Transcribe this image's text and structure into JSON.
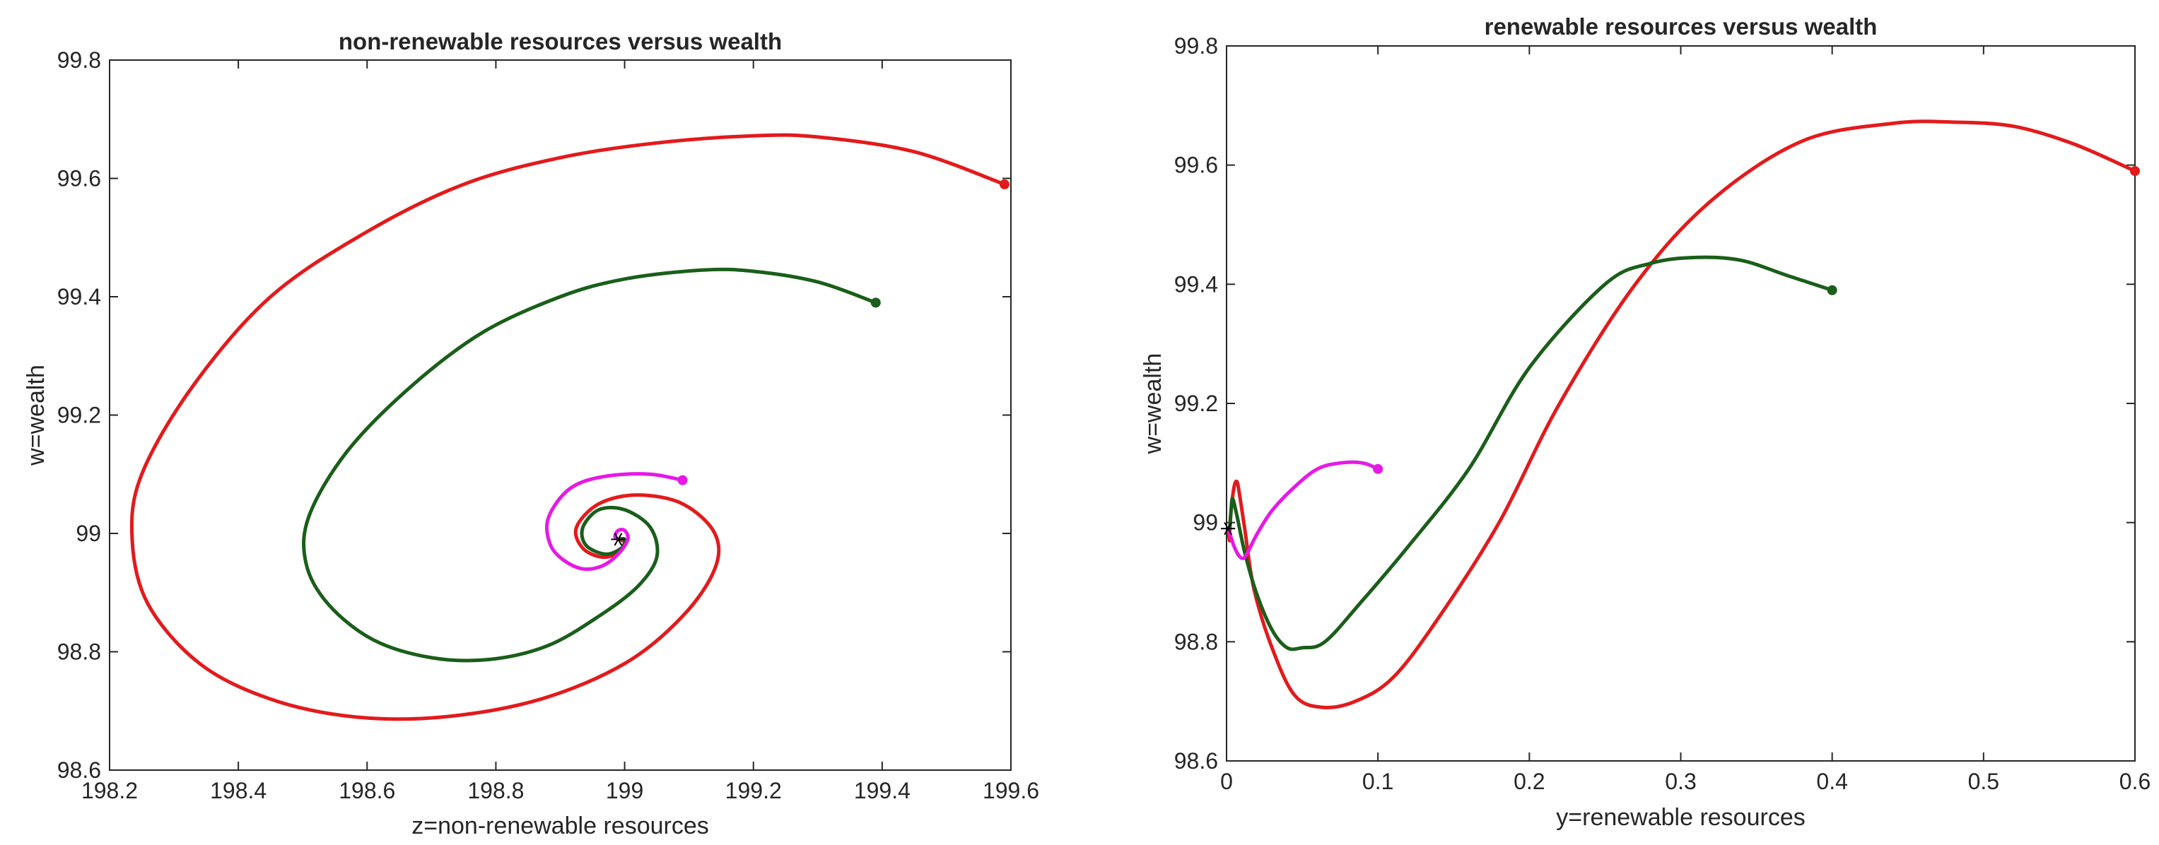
{
  "colors": {
    "red": "#e31a1c",
    "green": "#1a5e1a",
    "magenta": "#e619e6",
    "axis": "#262626",
    "marker": "#000000"
  },
  "chart_data": [
    {
      "type": "line",
      "title": "non-renewable resources versus wealth",
      "xlabel": "z=non-renewable resources",
      "ylabel": "w=wealth",
      "xlim": [
        198.2,
        199.6
      ],
      "ylim": [
        98.6,
        99.8
      ],
      "xticks": [
        "198.2",
        "198.4",
        "198.6",
        "198.8",
        "199",
        "199.2",
        "199.4",
        "199.6"
      ],
      "yticks": [
        "98.6",
        "98.8",
        "99",
        "99.2",
        "99.4",
        "99.6",
        "99.8"
      ],
      "equilibrium": {
        "x": 198.99,
        "y": 98.99
      },
      "series": [
        {
          "name": "trajectory-red",
          "color": "red",
          "start": {
            "x": 199.59,
            "y": 99.59
          },
          "points": [
            [
              199.59,
              99.59
            ],
            [
              199.45,
              99.645
            ],
            [
              199.3,
              99.67
            ],
            [
              199.2,
              99.672
            ],
            [
              199.05,
              99.66
            ],
            [
              198.9,
              99.635
            ],
            [
              198.75,
              99.59
            ],
            [
              198.6,
              99.51
            ],
            [
              198.45,
              99.4
            ],
            [
              198.33,
              99.25
            ],
            [
              198.25,
              99.1
            ],
            [
              198.235,
              98.99
            ],
            [
              198.26,
              98.88
            ],
            [
              198.34,
              98.78
            ],
            [
              198.45,
              98.72
            ],
            [
              198.58,
              98.69
            ],
            [
              198.72,
              98.69
            ],
            [
              198.87,
              98.72
            ],
            [
              199.0,
              98.78
            ],
            [
              199.09,
              98.86
            ],
            [
              199.14,
              98.94
            ],
            [
              199.14,
              99.0
            ],
            [
              199.09,
              99.05
            ],
            [
              199.02,
              99.065
            ],
            [
              198.96,
              99.05
            ],
            [
              198.925,
              99.01
            ],
            [
              198.935,
              98.975
            ],
            [
              198.965,
              98.96
            ],
            [
              198.99,
              98.968
            ],
            [
              199.0,
              98.985
            ],
            [
              198.99,
              98.99
            ]
          ]
        },
        {
          "name": "trajectory-green",
          "color": "green",
          "start": {
            "x": 199.39,
            "y": 99.39
          },
          "points": [
            [
              199.39,
              99.39
            ],
            [
              199.3,
              99.425
            ],
            [
              199.2,
              99.443
            ],
            [
              199.12,
              99.445
            ],
            [
              199.0,
              99.43
            ],
            [
              198.9,
              99.4
            ],
            [
              198.78,
              99.34
            ],
            [
              198.67,
              99.25
            ],
            [
              198.57,
              99.14
            ],
            [
              198.51,
              99.03
            ],
            [
              198.505,
              98.95
            ],
            [
              198.54,
              98.88
            ],
            [
              198.61,
              98.82
            ],
            [
              198.7,
              98.79
            ],
            [
              198.79,
              98.787
            ],
            [
              198.88,
              98.81
            ],
            [
              198.96,
              98.86
            ],
            [
              199.02,
              98.91
            ],
            [
              199.05,
              98.96
            ],
            [
              199.04,
              99.01
            ],
            [
              199.0,
              99.04
            ],
            [
              198.96,
              99.04
            ],
            [
              198.935,
              99.01
            ],
            [
              198.94,
              98.98
            ],
            [
              198.97,
              98.965
            ],
            [
              198.995,
              98.975
            ],
            [
              199.0,
              98.99
            ],
            [
              198.99,
              98.99
            ]
          ]
        },
        {
          "name": "trajectory-magenta",
          "color": "magenta",
          "start": {
            "x": 199.09,
            "y": 99.09
          },
          "points": [
            [
              199.09,
              99.09
            ],
            [
              199.04,
              99.1
            ],
            [
              198.98,
              99.098
            ],
            [
              198.93,
              99.085
            ],
            [
              198.9,
              99.06
            ],
            [
              198.88,
              99.02
            ],
            [
              198.885,
              98.98
            ],
            [
              198.905,
              98.955
            ],
            [
              198.935,
              98.94
            ],
            [
              198.965,
              98.945
            ],
            [
              198.99,
              98.965
            ],
            [
              199.005,
              98.99
            ],
            [
              199.0,
              99.005
            ],
            [
              198.99,
              99.005
            ],
            [
              198.985,
              98.995
            ],
            [
              198.99,
              98.99
            ]
          ]
        }
      ]
    },
    {
      "type": "line",
      "title": "renewable resources versus wealth",
      "xlabel": "y=renewable resources",
      "ylabel": "w=wealth",
      "xlim": [
        0,
        0.6
      ],
      "ylim": [
        98.6,
        99.8
      ],
      "xticks": [
        "0",
        "0.1",
        "0.2",
        "0.3",
        "0.4",
        "0.5",
        "0.6"
      ],
      "yticks": [
        "98.6",
        "98.8",
        "99",
        "99.2",
        "99.4",
        "99.6",
        "99.8"
      ],
      "equilibrium": {
        "x": 0.001,
        "y": 98.99
      },
      "series": [
        {
          "name": "trajectory-red",
          "color": "red",
          "start": {
            "x": 0.6,
            "y": 99.59
          },
          "points": [
            [
              0.6,
              99.59
            ],
            [
              0.56,
              99.635
            ],
            [
              0.52,
              99.665
            ],
            [
              0.48,
              99.672
            ],
            [
              0.44,
              99.67
            ],
            [
              0.38,
              99.64
            ],
            [
              0.32,
              99.54
            ],
            [
              0.27,
              99.4
            ],
            [
              0.22,
              99.2
            ],
            [
              0.18,
              99.0
            ],
            [
              0.14,
              98.84
            ],
            [
              0.11,
              98.74
            ],
            [
              0.085,
              98.7
            ],
            [
              0.063,
              98.69
            ],
            [
              0.045,
              98.71
            ],
            [
              0.03,
              98.79
            ],
            [
              0.018,
              98.89
            ],
            [
              0.012,
              98.99
            ],
            [
              0.009,
              99.04
            ],
            [
              0.007,
              99.068
            ],
            [
              0.005,
              99.06
            ],
            [
              0.003,
              99.02
            ],
            [
              0.002,
              98.98
            ],
            [
              0.002,
              98.97
            ],
            [
              0.001,
              98.99
            ]
          ]
        },
        {
          "name": "trajectory-green",
          "color": "green",
          "start": {
            "x": 0.4,
            "y": 99.39
          },
          "points": [
            [
              0.4,
              99.39
            ],
            [
              0.37,
              99.415
            ],
            [
              0.34,
              99.44
            ],
            [
              0.31,
              99.445
            ],
            [
              0.28,
              99.435
            ],
            [
              0.25,
              99.4
            ],
            [
              0.2,
              99.26
            ],
            [
              0.16,
              99.09
            ],
            [
              0.12,
              98.96
            ],
            [
              0.09,
              98.87
            ],
            [
              0.065,
              98.8
            ],
            [
              0.05,
              98.79
            ],
            [
              0.04,
              98.79
            ],
            [
              0.03,
              98.82
            ],
            [
              0.02,
              98.88
            ],
            [
              0.012,
              98.95
            ],
            [
              0.007,
              99.01
            ],
            [
              0.004,
              99.04
            ],
            [
              0.003,
              99.02
            ],
            [
              0.002,
              98.99
            ],
            [
              0.001,
              98.99
            ]
          ]
        },
        {
          "name": "trajectory-magenta",
          "color": "magenta",
          "start": {
            "x": 0.1,
            "y": 99.09
          },
          "points": [
            [
              0.1,
              99.09
            ],
            [
              0.09,
              99.1
            ],
            [
              0.075,
              99.1
            ],
            [
              0.06,
              99.09
            ],
            [
              0.045,
              99.06
            ],
            [
              0.03,
              99.02
            ],
            [
              0.02,
              98.98
            ],
            [
              0.014,
              98.95
            ],
            [
              0.011,
              98.94
            ],
            [
              0.008,
              98.945
            ],
            [
              0.005,
              98.96
            ],
            [
              0.003,
              98.975
            ],
            [
              0.001,
              98.99
            ]
          ]
        }
      ]
    }
  ]
}
